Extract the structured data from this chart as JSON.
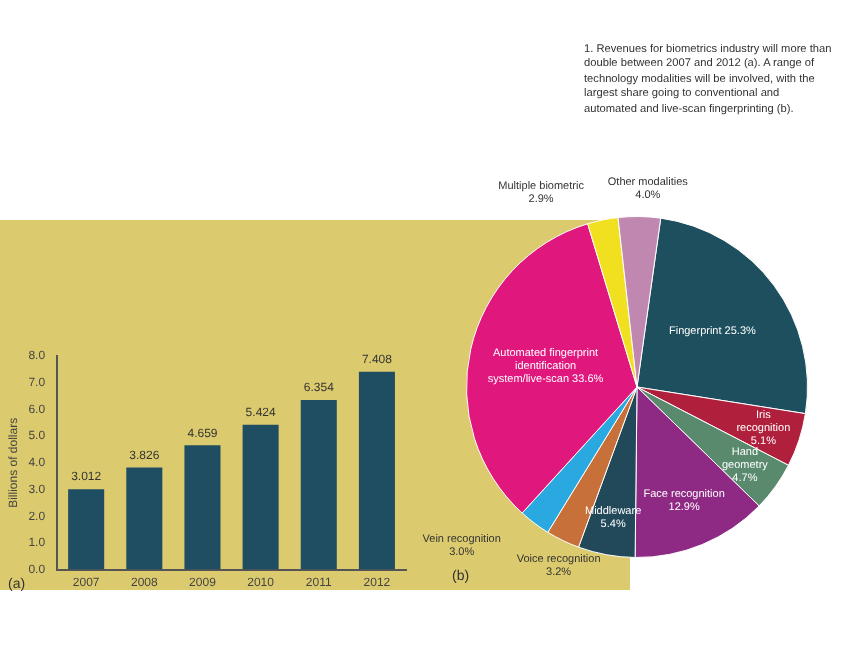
{
  "chart_data": [
    {
      "type": "bar",
      "ylabel": "Billions of dollars",
      "categories": [
        "2007",
        "2008",
        "2009",
        "2010",
        "2011",
        "2012"
      ],
      "values": [
        3.012,
        3.826,
        4.659,
        5.424,
        6.354,
        7.408
      ],
      "color": "#1f4e63",
      "ylim": [
        0,
        8
      ],
      "yticks": [
        {
          "value": 0,
          "label": "0.0"
        },
        {
          "value": 1,
          "label": "1.0"
        },
        {
          "value": 2,
          "label": "2.0"
        },
        {
          "value": 3,
          "label": "3.0"
        },
        {
          "value": 4,
          "label": "4.0"
        },
        {
          "value": 5,
          "label": "5.0"
        },
        {
          "value": 6,
          "label": "6.0"
        },
        {
          "value": 7,
          "label": "7.0"
        },
        {
          "value": 8,
          "label": "8.0"
        }
      ],
      "grid": false,
      "data_labels": true,
      "legend": false,
      "annotations": [
        "(a)"
      ]
    },
    {
      "type": "pie",
      "categories": [
        "Fingerprint 25.3%",
        "Iris recognition 5.1%",
        "Hand geometry 4.7%",
        "Face recognition 12.9%",
        "Middleware 5.4%",
        "Voice recognition 3.2%",
        "Vein recognition 3.0%",
        "Automated fingerprint identification system/live-scan 33.6%",
        "Multiple biometric 2.9%",
        "Other modalities 4.0%"
      ],
      "values": [
        25.3,
        5.1,
        4.7,
        12.9,
        5.4,
        3.2,
        3.0,
        33.6,
        2.9,
        4.0
      ],
      "colors": [
        "#1e4f5e",
        "#b0203c",
        "#5a8a6e",
        "#8e2a84",
        "#22495a",
        "#c8703a",
        "#2aa8e0",
        "#e0187e",
        "#f0e020",
        "#c088b0"
      ],
      "legend": false,
      "annotations": [
        "(b)",
        "1. Revenues for biometrics industry will more than double between 2007 and 2012 (a). A range of technology modalities will be involved, with the largest share going to conventional and automated and live-scan fingerprinting (b)."
      ]
    }
  ]
}
